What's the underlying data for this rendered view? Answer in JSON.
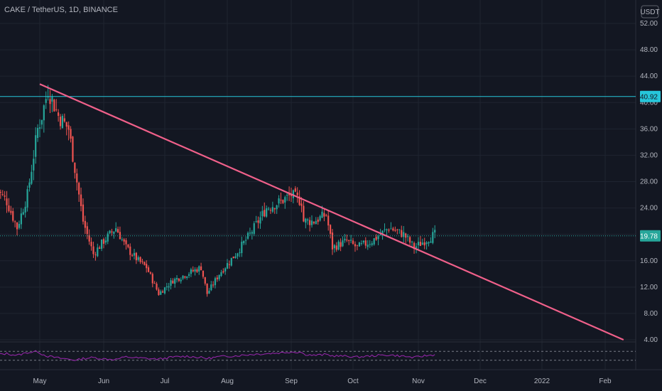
{
  "header": {
    "title": "CAKE / TetherUS, 1D, BINANCE"
  },
  "currency_badge": "USDT",
  "price_tags": {
    "horizontal_level": "40.92",
    "last_price": "19.78"
  },
  "colors": {
    "background": "#131722",
    "up": "#26a69a",
    "down": "#ef5350",
    "trendline": "#f0608a",
    "resistance_line": "#26c6da",
    "last_price_line": "#26a69a",
    "rsi_line": "#9c27b0",
    "grid": "#1f2430",
    "text": "#b2b5be"
  },
  "chart_data": {
    "type": "candlestick",
    "title": "CAKE / TetherUS, 1D, BINANCE",
    "y_axis": {
      "ticks": [
        "52.00",
        "48.00",
        "44.00",
        "40.00",
        "36.00",
        "32.00",
        "28.00",
        "24.00",
        "20.00",
        "16.00",
        "12.00",
        "8.00",
        "4.00"
      ],
      "range": [
        4,
        53
      ],
      "position": "right"
    },
    "x_axis": {
      "ticks": [
        "May",
        "Jun",
        "Jul",
        "Aug",
        "Sep",
        "Oct",
        "Nov",
        "Dec",
        "2022",
        "Feb"
      ]
    },
    "series": [
      {
        "kind": "ohlc_close_path",
        "x": [
          "2021-04-10",
          "2021-04-15",
          "2021-04-20",
          "2021-04-25",
          "2021-04-30",
          "2021-05-02",
          "2021-05-05",
          "2021-05-10",
          "2021-05-15",
          "2021-05-19",
          "2021-05-22",
          "2021-05-27",
          "2021-06-01",
          "2021-06-07",
          "2021-06-12",
          "2021-06-18",
          "2021-06-22",
          "2021-06-28",
          "2021-07-05",
          "2021-07-12",
          "2021-07-19",
          "2021-07-22",
          "2021-07-28",
          "2021-08-05",
          "2021-08-12",
          "2021-08-20",
          "2021-08-27",
          "2021-09-01",
          "2021-09-06",
          "2021-09-07",
          "2021-09-12",
          "2021-09-18",
          "2021-09-21",
          "2021-09-28",
          "2021-10-03",
          "2021-10-10",
          "2021-10-18",
          "2021-10-25",
          "2021-10-30",
          "2021-11-04",
          "2021-11-09"
        ],
        "close": [
          27,
          25,
          21,
          26,
          36,
          38,
          42,
          38,
          36,
          28,
          22,
          17,
          19,
          21,
          18,
          16,
          15,
          11,
          13,
          14,
          15,
          11,
          14,
          17,
          20,
          24,
          25,
          26,
          25,
          22,
          22,
          23,
          18,
          19,
          18,
          19,
          21,
          20,
          18,
          19,
          20
        ]
      }
    ],
    "annotations": [
      {
        "type": "horizontal_line",
        "name": "resistance",
        "y": 40.92
      },
      {
        "type": "horizontal_line",
        "name": "last_price",
        "y": 19.78,
        "style": "dotted"
      },
      {
        "type": "trendline",
        "from": {
          "x": "2021-05-01",
          "y": 42.8
        },
        "to": {
          "x": "2022-02-10",
          "y": 4.0
        }
      }
    ],
    "rsi_pane": {
      "upper_band": 70,
      "lower_band": 30,
      "values": [
        55,
        60,
        52,
        65,
        70,
        58,
        48,
        40,
        35,
        30,
        38,
        42,
        36,
        34,
        45,
        40,
        38,
        35,
        44,
        48,
        42,
        38,
        46,
        50,
        56,
        60,
        64,
        68,
        66,
        58,
        52,
        56,
        50,
        48,
        44,
        50,
        54,
        48,
        42,
        50,
        55
      ]
    },
    "grid": true
  }
}
